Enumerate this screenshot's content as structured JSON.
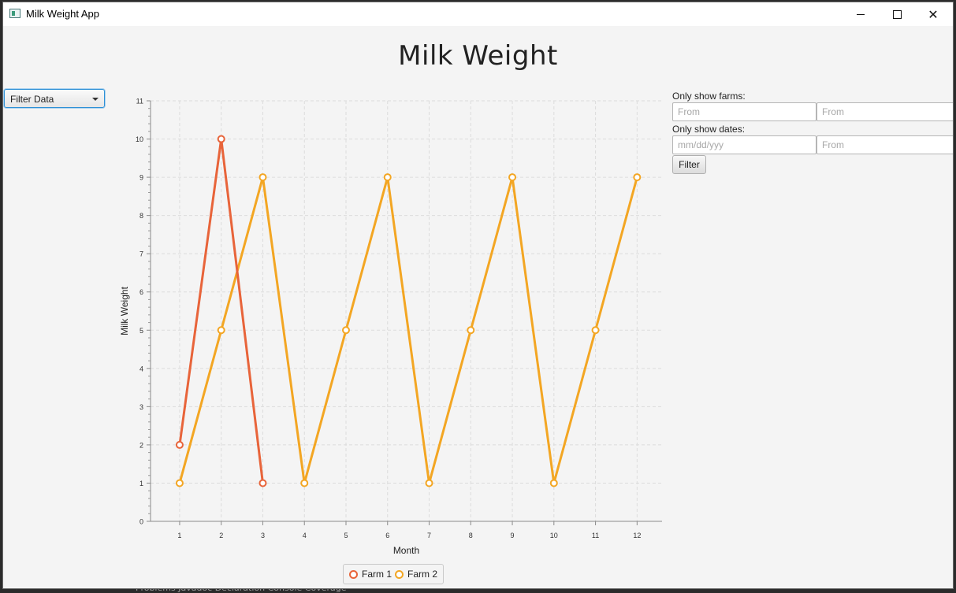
{
  "window": {
    "title": "Milk Weight App"
  },
  "background_bleed": "Problems  Javadoc  Declaration  Console  Coverage",
  "heading": "Milk Weight",
  "filter_dropdown": {
    "selected": "Filter Data"
  },
  "filters": {
    "farms_label": "Only show farms:",
    "farm_from_1_placeholder": "From",
    "farm_from_2_placeholder": "From",
    "dates_label": "Only show dates:",
    "date_from_placeholder": "mm/dd/yyy",
    "date_to_placeholder": "From",
    "filter_button": "Filter"
  },
  "chart_data": {
    "type": "line",
    "xlabel": "Month",
    "ylabel": "Milk Weight",
    "xlim": [
      0.3,
      12.6
    ],
    "ylim": [
      0,
      11
    ],
    "x_ticks": [
      1,
      2,
      3,
      4,
      5,
      6,
      7,
      8,
      9,
      10,
      11,
      12
    ],
    "y_ticks": [
      0,
      1,
      2,
      3,
      4,
      5,
      6,
      7,
      8,
      9,
      10,
      11
    ],
    "grid": true,
    "legend_position": "bottom",
    "series": [
      {
        "name": "Farm 1",
        "color": "#e8643a",
        "x": [
          1,
          2,
          3
        ],
        "y": [
          2,
          10,
          1
        ]
      },
      {
        "name": "Farm 2",
        "color": "#f3a623",
        "x": [
          1,
          2,
          3,
          4,
          5,
          6,
          7,
          8,
          9,
          10,
          11,
          12
        ],
        "y": [
          1,
          5,
          9,
          1,
          5,
          9,
          1,
          5,
          9,
          1,
          5,
          9
        ]
      }
    ]
  }
}
